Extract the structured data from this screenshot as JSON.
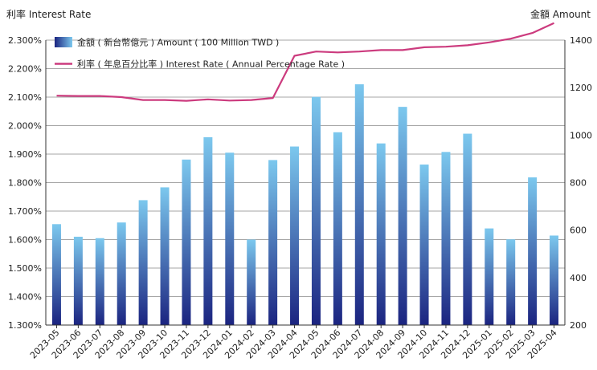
{
  "header": {
    "left_unit": "利率 Interest Rate",
    "right_unit": "金額 Amount"
  },
  "colors": {
    "bar_top": "#7cc8ee",
    "bar_bottom": "#1b2480",
    "line": "#cc3b7e",
    "grid": "#888888",
    "axis": "#333333"
  },
  "chart_data": {
    "type": "bar",
    "title": "",
    "categories": [
      "2023-05",
      "2023-06",
      "2023-07",
      "2023-08",
      "2023-09",
      "2023-10",
      "2023-11",
      "2023-12",
      "2024-01",
      "2024-02",
      "2024-03",
      "2024-04",
      "2024-05",
      "2024-06",
      "2024-07",
      "2024-08",
      "2024-09",
      "2024-10",
      "2024-11",
      "2024-12",
      "2025-01",
      "2025-02",
      "2025-03",
      "2025-04"
    ],
    "series": [
      {
        "name": "金額 ( 新台幣億元 ) Amount ( 100 Million TWD )",
        "type": "bar",
        "axis": "right",
        "values": [
          625,
          572,
          566,
          632,
          726,
          780,
          897,
          991,
          926,
          560,
          895,
          952,
          1161,
          1012,
          1214,
          965,
          1119,
          876,
          929,
          1006,
          607,
          561,
          822,
          577
        ]
      },
      {
        "name": "利率 ( 年息百分比率 ) Interest Rate ( Annual Percentage Rate )",
        "type": "line",
        "axis": "left",
        "values": [
          2.105,
          2.104,
          2.104,
          2.1,
          2.09,
          2.09,
          2.087,
          2.092,
          2.088,
          2.09,
          2.097,
          2.245,
          2.26,
          2.257,
          2.26,
          2.265,
          2.265,
          2.275,
          2.277,
          2.282,
          2.292,
          2.305,
          2.325,
          2.36
        ]
      }
    ],
    "left_axis": {
      "range": [
        1.3,
        2.3
      ],
      "ticks": [
        "1.300%",
        "1.400%",
        "1.500%",
        "1.600%",
        "1.700%",
        "1.800%",
        "1.900%",
        "2.000%",
        "2.100%",
        "2.200%",
        "2.300%"
      ]
    },
    "right_axis": {
      "range": [
        200,
        1400
      ],
      "ticks": [
        "200",
        "400",
        "600",
        "800",
        "1000",
        "1200",
        "1400"
      ]
    },
    "grid": true,
    "legend_position": "top-left"
  }
}
